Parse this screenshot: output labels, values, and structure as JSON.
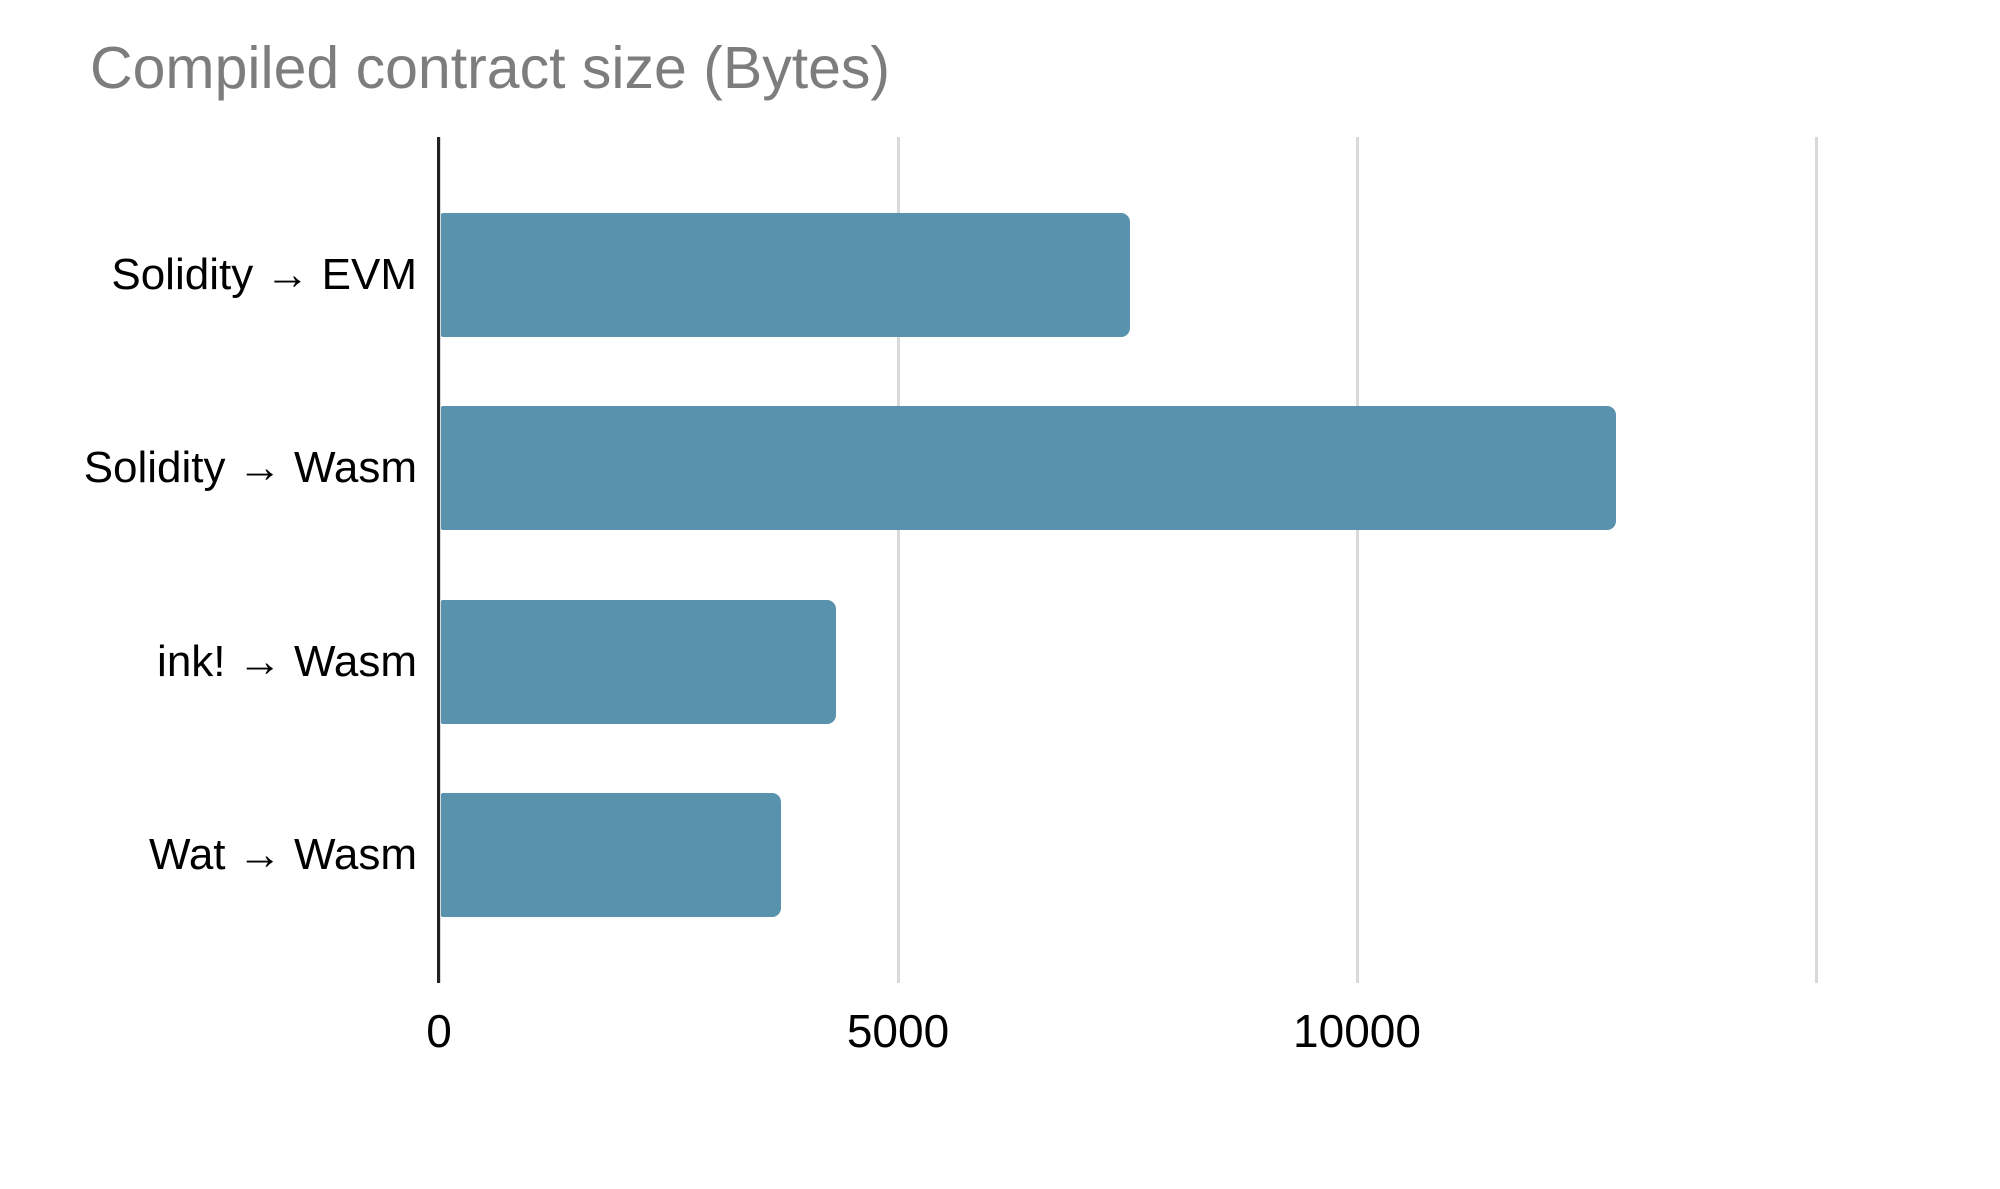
{
  "chart_data": {
    "type": "bar",
    "orientation": "horizontal",
    "title": "Compiled contract size (Bytes)",
    "categories": [
      "Solidity → EVM",
      "Solidity → Wasm",
      "ink! → Wasm",
      "Wat → Wasm"
    ],
    "values": [
      7500,
      12800,
      4300,
      3700
    ],
    "xlabel": "",
    "ylabel": "",
    "x_tick_labels": [
      "0",
      "5000",
      "10000"
    ],
    "x_tick_values": [
      0,
      5000,
      10000
    ],
    "x_gridline_values": [
      0,
      5000,
      10000,
      15000
    ],
    "gridline_interval": 5000,
    "xlim": [
      0,
      16800
    ],
    "grid": "vertical-only",
    "legend": "none",
    "colors": {
      "bar": "#5892ad",
      "gridline": "#d9d9d9",
      "axis_line": "#212121",
      "title_text": "#7d7d7d",
      "label_text": "#000000",
      "background": "#ffffff"
    }
  }
}
